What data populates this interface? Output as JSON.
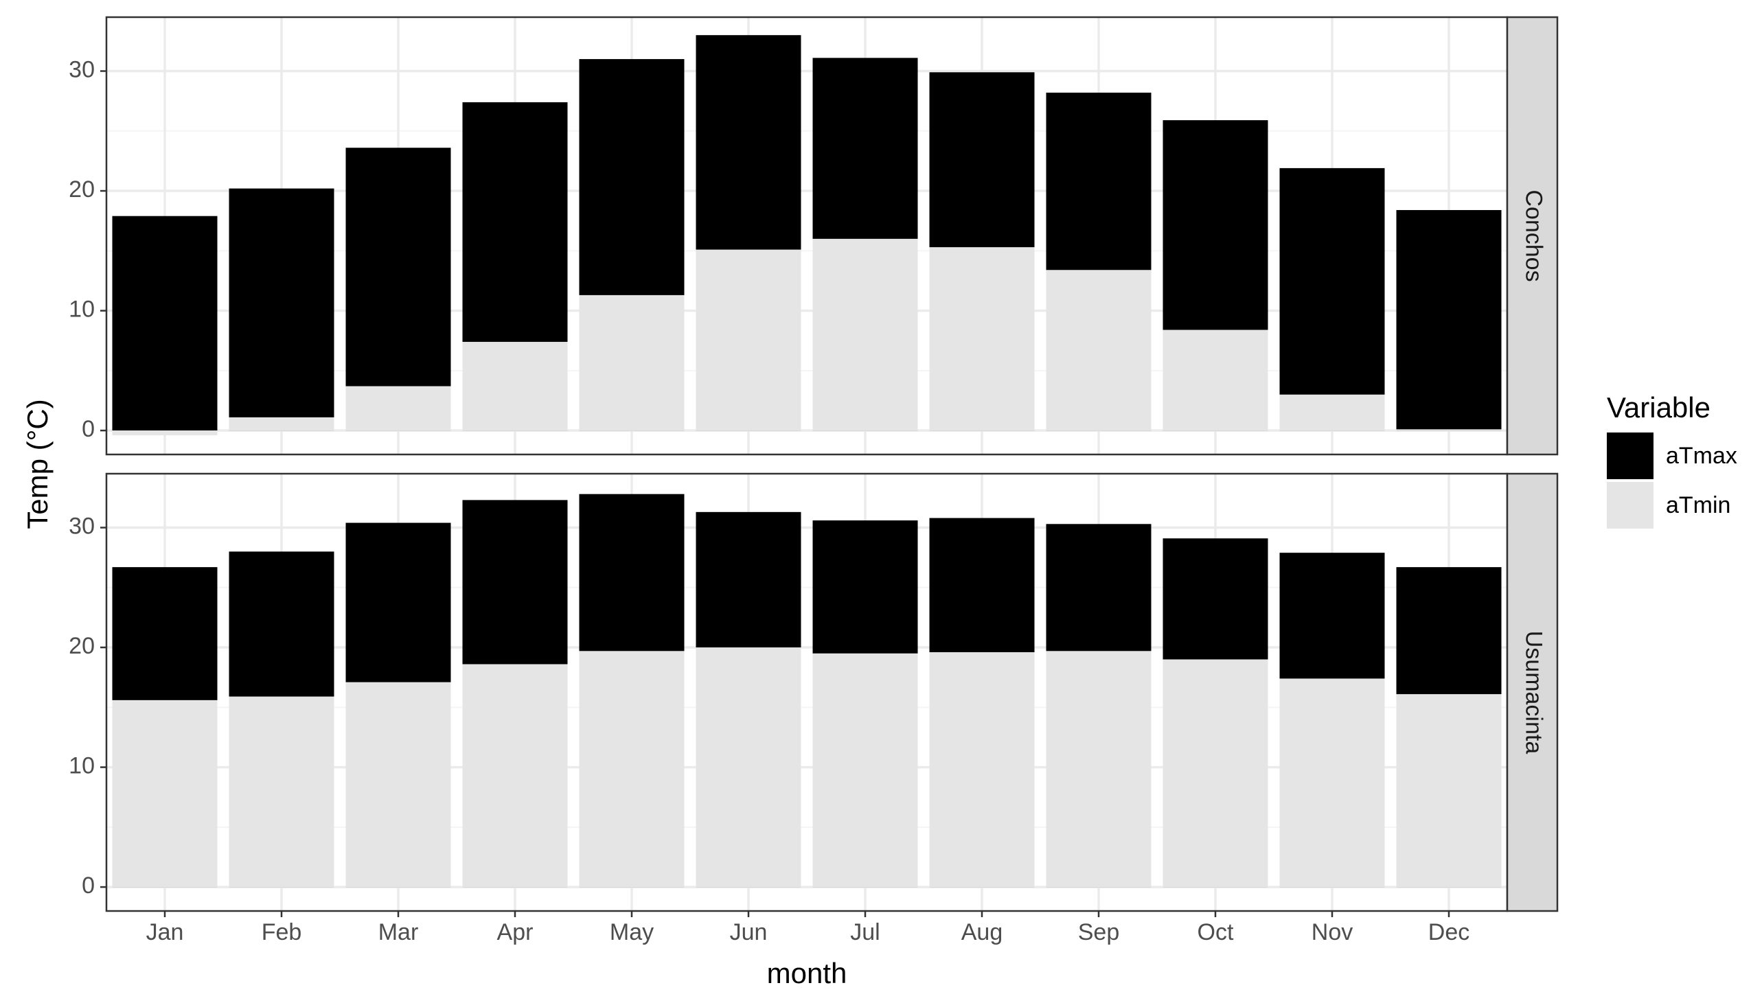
{
  "chart_data": {
    "type": "bar",
    "stacking": "overlay",
    "categories": [
      "Jan",
      "Feb",
      "Mar",
      "Apr",
      "May",
      "Jun",
      "Jul",
      "Aug",
      "Sep",
      "Oct",
      "Nov",
      "Dec"
    ],
    "xlabel": "month",
    "ylabel": "Temp (°C)",
    "ylim": [
      -2,
      34.5
    ],
    "yticks": [
      0,
      10,
      20,
      30
    ],
    "grid": true,
    "legend": {
      "title": "Variable",
      "position": "right",
      "entries": [
        {
          "name": "aTmax",
          "color": "#000000"
        },
        {
          "name": "aTmin",
          "color": "#e5e5e5"
        }
      ]
    },
    "facets": [
      {
        "strip": "Conchos",
        "series": [
          {
            "name": "aTmax",
            "values": [
              17.9,
              20.2,
              23.6,
              27.4,
              31.0,
              33.0,
              31.1,
              29.9,
              28.2,
              25.9,
              21.9,
              18.4
            ]
          },
          {
            "name": "aTmin",
            "values": [
              -0.4,
              1.1,
              3.7,
              7.4,
              11.3,
              15.1,
              16.0,
              15.3,
              13.4,
              8.4,
              3.0,
              0.1
            ]
          }
        ]
      },
      {
        "strip": "Usumacinta",
        "series": [
          {
            "name": "aTmax",
            "values": [
              26.7,
              28.0,
              30.4,
              32.3,
              32.8,
              31.3,
              30.6,
              30.8,
              30.3,
              29.1,
              27.9,
              26.7
            ]
          },
          {
            "name": "aTmin",
            "values": [
              15.6,
              15.9,
              17.1,
              18.6,
              19.7,
              20.0,
              19.5,
              19.6,
              19.7,
              19.0,
              17.4,
              16.1
            ]
          }
        ]
      }
    ]
  },
  "colors": {
    "panel_border": "#333333",
    "grid_major": "#ebebeb",
    "grid_minor": "#f5f5f5",
    "strip_fill": "#d9d9d9",
    "tick": "#333333"
  }
}
